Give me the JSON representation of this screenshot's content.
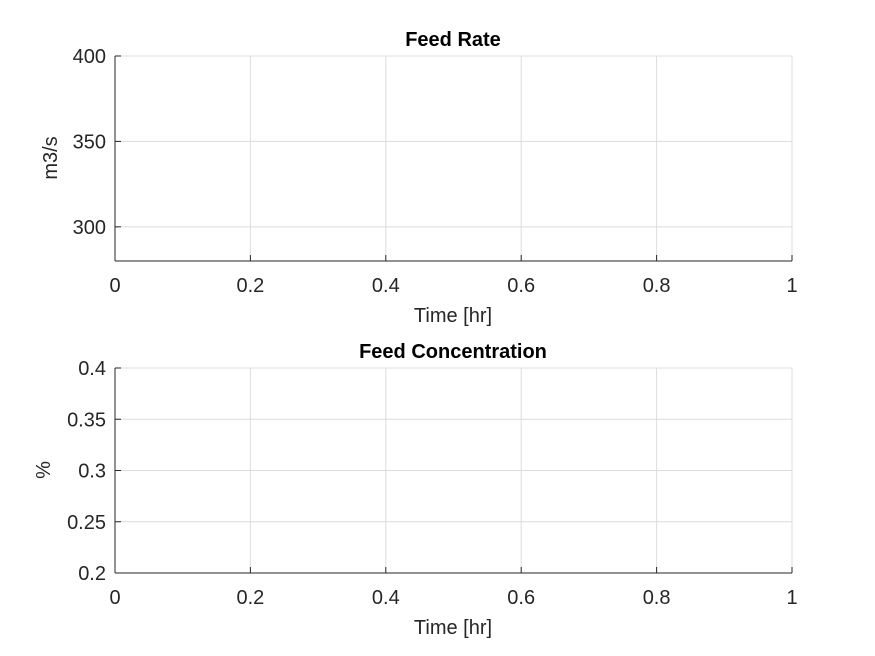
{
  "chart_data": [
    {
      "type": "line",
      "title": "Feed Rate",
      "xlabel": "Time [hr]",
      "ylabel": "m3/s",
      "xlim": [
        0,
        1
      ],
      "ylim": [
        280,
        400
      ],
      "xticks": [
        0,
        0.2,
        0.4,
        0.6,
        0.8,
        1
      ],
      "xtick_labels": [
        "0",
        "0.2",
        "0.4",
        "0.6",
        "0.8",
        "1"
      ],
      "yticks": [
        300,
        350,
        400
      ],
      "ytick_labels": [
        "300",
        "350",
        "400"
      ],
      "grid": true,
      "series": []
    },
    {
      "type": "line",
      "title": "Feed Concentration",
      "xlabel": "Time [hr]",
      "ylabel": "%",
      "xlim": [
        0,
        1
      ],
      "ylim": [
        0.2,
        0.4
      ],
      "xticks": [
        0,
        0.2,
        0.4,
        0.6,
        0.8,
        1
      ],
      "xtick_labels": [
        "0",
        "0.2",
        "0.4",
        "0.6",
        "0.8",
        "1"
      ],
      "yticks": [
        0.2,
        0.25,
        0.3,
        0.35,
        0.4
      ],
      "ytick_labels": [
        "0.2",
        "0.25",
        "0.3",
        "0.35",
        "0.4"
      ],
      "grid": true,
      "series": []
    }
  ],
  "colors": {
    "axis": "#262626",
    "grid": "#dcdcdc",
    "background": "#ffffff"
  }
}
